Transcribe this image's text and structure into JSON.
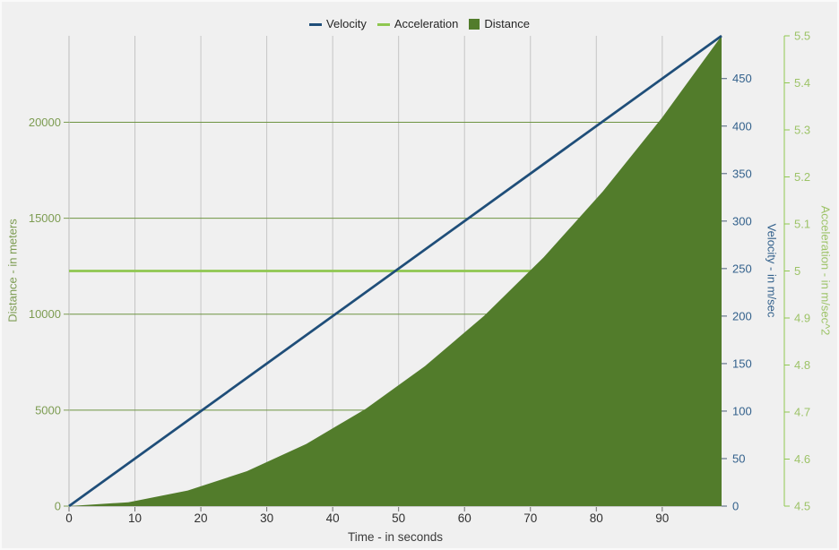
{
  "chart": {
    "background": "#F0F0F0",
    "grid": {
      "vertical_color": "#C5C5C5",
      "horizontal_color": "#6E9442"
    }
  },
  "legend": {
    "position": "top-center",
    "items": [
      {
        "label": "Velocity",
        "marker": "line",
        "color": "#1F4E79"
      },
      {
        "label": "Acceleration",
        "marker": "line",
        "color": "#8FC750"
      },
      {
        "label": "Distance",
        "marker": "square",
        "color": "#527C2B"
      }
    ]
  },
  "axes": {
    "x": {
      "title": "Time - in seconds",
      "min": 0,
      "max": 99,
      "ticks": [
        0,
        10,
        20,
        30,
        40,
        50,
        60,
        70,
        80,
        90
      ],
      "tick_label_color": "#303030",
      "title_color": "#3A3A3A"
    },
    "distance": {
      "title": "Distance - in meters",
      "min": 0,
      "max": 24502.5,
      "ticks": [
        0,
        5000,
        10000,
        15000,
        20000
      ],
      "color": "#7D9C52"
    },
    "velocity": {
      "title": "Velocity - in m/sec",
      "min": 0,
      "max": 495,
      "ticks": [
        0,
        50,
        100,
        150,
        200,
        250,
        300,
        350,
        400,
        450
      ],
      "color": "#33618C",
      "tick_color": "#4A5E78"
    },
    "acceleration": {
      "title": "Acceleration - in m/sec^2",
      "min": 4.5,
      "max": 5.5,
      "ticks": [
        4.5,
        4.6,
        4.7,
        4.8,
        4.9,
        5,
        5.1,
        5.2,
        5.3,
        5.4,
        5.5
      ],
      "color": "#9DC368",
      "line_color": "#8FC750"
    }
  },
  "chart_data": {
    "type": "line",
    "title": "",
    "xlabel": "Time - in seconds",
    "x_range": [
      0,
      99
    ],
    "grid": "on",
    "legend_position": "top-center",
    "y_axes": [
      {
        "id": "distance",
        "label": "Distance - in meters",
        "range": [
          0,
          24502.5
        ],
        "side": "left"
      },
      {
        "id": "velocity",
        "label": "Velocity - in m/sec",
        "range": [
          0,
          495
        ],
        "side": "right"
      },
      {
        "id": "acceleration",
        "label": "Acceleration - in m/sec^2",
        "range": [
          4.5,
          5.5
        ],
        "side": "right-outer"
      }
    ],
    "series": [
      {
        "name": "Acceleration",
        "type": "line",
        "axis": "acceleration",
        "color": "#8FC750",
        "points": [
          [
            0,
            5
          ],
          [
            99,
            5
          ]
        ]
      },
      {
        "name": "Distance",
        "type": "area",
        "axis": "distance",
        "color": "#527C2B",
        "points": [
          [
            0,
            0
          ],
          [
            9,
            202.5
          ],
          [
            18,
            810
          ],
          [
            27,
            1822.5
          ],
          [
            36,
            3240
          ],
          [
            45,
            5062.5
          ],
          [
            54,
            7290
          ],
          [
            63,
            9922.5
          ],
          [
            72,
            12960
          ],
          [
            81,
            16402.5
          ],
          [
            90,
            20250
          ],
          [
            99,
            24502.5
          ]
        ]
      },
      {
        "name": "Velocity",
        "type": "line",
        "axis": "velocity",
        "color": "#1F4E79",
        "points": [
          [
            0,
            0
          ],
          [
            99,
            495
          ]
        ]
      }
    ]
  }
}
